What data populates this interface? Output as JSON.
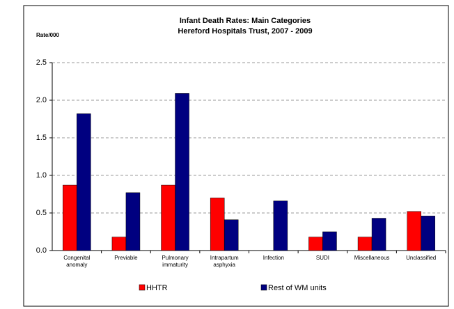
{
  "chart_data": {
    "type": "bar",
    "title": "Infant Death Rates: Main Categories",
    "subtitle": "Hereford Hospitals Trust, 2007 - 2009",
    "y_label": "Rate/000",
    "categories": [
      "Congenital anomaly",
      "Previable",
      "Pulmonary immaturity",
      "Intrapartum asphyxia",
      "Infection",
      "SUDI",
      "Miscellaneous",
      "Unclassified"
    ],
    "series": [
      {
        "name": "HHTR",
        "color": "#ff0000",
        "values": [
          0.87,
          0.18,
          0.87,
          0.7,
          0,
          0.18,
          0.18,
          0.52
        ]
      },
      {
        "name": "Rest of WM units",
        "color": "#000080",
        "values": [
          1.82,
          0.77,
          2.09,
          0.41,
          0.66,
          0.25,
          0.43,
          0.46
        ]
      }
    ],
    "ylim": [
      0,
      2.5
    ],
    "yticks": [
      {
        "value": 0,
        "label": "0.0"
      },
      0.5,
      {
        "value": 1,
        "label": "1.0"
      },
      1.5,
      {
        "value": 2,
        "label": "2.0"
      },
      2.5
    ],
    "grid": true,
    "legend": "bottom"
  }
}
